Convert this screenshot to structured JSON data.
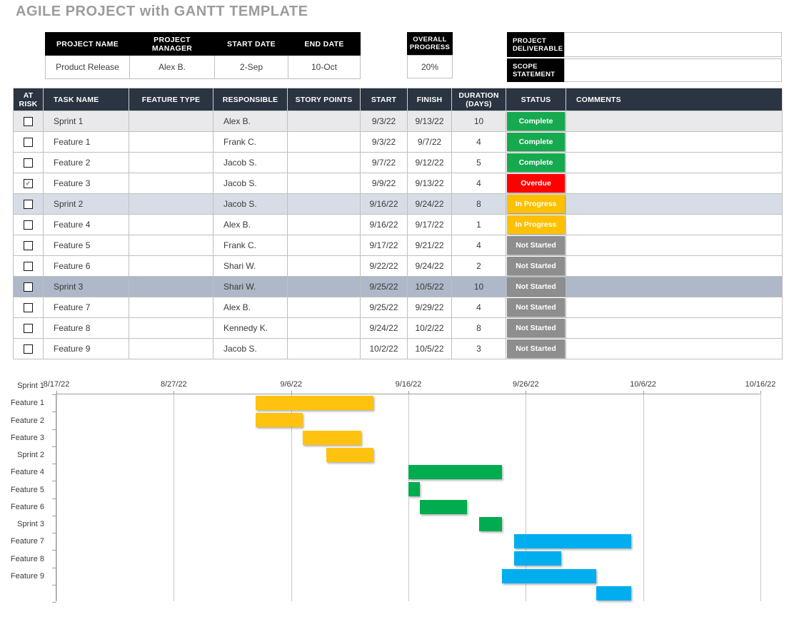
{
  "title": "AGILE PROJECT with GANTT TEMPLATE",
  "project_info": {
    "headers": [
      "PROJECT NAME",
      "PROJECT MANAGER",
      "START DATE",
      "END DATE"
    ],
    "values": [
      "Product Release",
      "Alex B.",
      "2-Sep",
      "10-Oct"
    ]
  },
  "overall_progress": {
    "label": "OVERALL PROGRESS",
    "value": "20%"
  },
  "deliverable": {
    "label": "PROJECT DELIVERABLE",
    "value": ""
  },
  "scope": {
    "label": "SCOPE STATEMENT",
    "value": ""
  },
  "colors": {
    "table_header": "#2B3441",
    "black_label": "#000000",
    "title_gray": "#9C9C9E"
  },
  "row_colors": {
    "sprint1": "#E9E9EB",
    "sprint2": "#D7DDE6",
    "sprint3": "#AEB8C8",
    "normal": "#FFFFFF"
  },
  "status_colors": {
    "Complete": "#16A94F",
    "Overdue": "#FE0000",
    "In Progress": "#FFC000",
    "Not Started": "#8E8E8E"
  },
  "checkmark_glyph": "✓",
  "task_table": {
    "headers": [
      "AT RISK",
      "TASK NAME",
      "FEATURE TYPE",
      "RESPONSIBLE",
      "STORY POINTS",
      "START",
      "FINISH",
      "DURATION (DAYS)",
      "STATUS",
      "COMMENTS"
    ],
    "rows": [
      {
        "at_risk": false,
        "task": "Sprint 1",
        "feature_type": "",
        "responsible": "Alex B.",
        "story_points": "",
        "start": "9/3/22",
        "finish": "9/13/22",
        "duration": "10",
        "status": "Complete",
        "comments": "",
        "row_type": "sprint1"
      },
      {
        "at_risk": false,
        "task": "Feature 1",
        "feature_type": "",
        "responsible": "Frank C.",
        "story_points": "",
        "start": "9/3/22",
        "finish": "9/7/22",
        "duration": "4",
        "status": "Complete",
        "comments": "",
        "row_type": "normal"
      },
      {
        "at_risk": false,
        "task": "Feature 2",
        "feature_type": "",
        "responsible": "Jacob S.",
        "story_points": "",
        "start": "9/7/22",
        "finish": "9/12/22",
        "duration": "5",
        "status": "Complete",
        "comments": "",
        "row_type": "normal"
      },
      {
        "at_risk": true,
        "task": "Feature 3",
        "feature_type": "",
        "responsible": "Jacob S.",
        "story_points": "",
        "start": "9/9/22",
        "finish": "9/13/22",
        "duration": "4",
        "status": "Overdue",
        "comments": "",
        "row_type": "normal"
      },
      {
        "at_risk": false,
        "task": "Sprint 2",
        "feature_type": "",
        "responsible": "Jacob S.",
        "story_points": "",
        "start": "9/16/22",
        "finish": "9/24/22",
        "duration": "8",
        "status": "In Progress",
        "comments": "",
        "row_type": "sprint2"
      },
      {
        "at_risk": false,
        "task": "Feature 4",
        "feature_type": "",
        "responsible": "Alex B.",
        "story_points": "",
        "start": "9/16/22",
        "finish": "9/17/22",
        "duration": "1",
        "status": "In Progress",
        "comments": "",
        "row_type": "normal"
      },
      {
        "at_risk": false,
        "task": "Feature 5",
        "feature_type": "",
        "responsible": "Frank C.",
        "story_points": "",
        "start": "9/17/22",
        "finish": "9/21/22",
        "duration": "4",
        "status": "Not Started",
        "comments": "",
        "row_type": "normal"
      },
      {
        "at_risk": false,
        "task": "Feature 6",
        "feature_type": "",
        "responsible": "Shari W.",
        "story_points": "",
        "start": "9/22/22",
        "finish": "9/24/22",
        "duration": "2",
        "status": "Not Started",
        "comments": "",
        "row_type": "normal"
      },
      {
        "at_risk": false,
        "task": "Sprint 3",
        "feature_type": "",
        "responsible": "Shari W.",
        "story_points": "",
        "start": "9/25/22",
        "finish": "10/5/22",
        "duration": "10",
        "status": "Not Started",
        "comments": "",
        "row_type": "sprint3"
      },
      {
        "at_risk": false,
        "task": "Feature 7",
        "feature_type": "",
        "responsible": "Alex B.",
        "story_points": "",
        "start": "9/25/22",
        "finish": "9/29/22",
        "duration": "4",
        "status": "Not Started",
        "comments": "",
        "row_type": "normal"
      },
      {
        "at_risk": false,
        "task": "Feature 8",
        "feature_type": "",
        "responsible": "Kennedy K.",
        "story_points": "",
        "start": "9/24/22",
        "finish": "10/2/22",
        "duration": "8",
        "status": "Not Started",
        "comments": "",
        "row_type": "normal"
      },
      {
        "at_risk": false,
        "task": "Feature 9",
        "feature_type": "",
        "responsible": "Jacob S.",
        "story_points": "",
        "start": "10/2/22",
        "finish": "10/5/22",
        "duration": "3",
        "status": "Not Started",
        "comments": "",
        "row_type": "normal"
      }
    ]
  },
  "chart_data": {
    "type": "bar",
    "subtype": "gantt",
    "axis_dates": [
      "8/17/22",
      "8/27/22",
      "9/6/22",
      "9/16/22",
      "9/26/22",
      "10/6/22",
      "10/16/22"
    ],
    "axis_range_days": 60,
    "tick_interval_days": 10,
    "grid": true,
    "legend": false,
    "tasks": [
      {
        "label": "Sprint 1",
        "start": "9/3/22",
        "end": "9/13/22",
        "color": "#FFC20E"
      },
      {
        "label": "Feature 1",
        "start": "9/3/22",
        "end": "9/7/22",
        "color": "#FFC20E"
      },
      {
        "label": "Feature 2",
        "start": "9/7/22",
        "end": "9/12/22",
        "color": "#FFC20E"
      },
      {
        "label": "Feature 3",
        "start": "9/9/22",
        "end": "9/13/22",
        "color": "#FFC20E"
      },
      {
        "label": "Sprint 2",
        "start": "9/16/22",
        "end": "9/24/22",
        "color": "#00AC4F"
      },
      {
        "label": "Feature 4",
        "start": "9/16/22",
        "end": "9/17/22",
        "color": "#00AC4F"
      },
      {
        "label": "Feature 5",
        "start": "9/17/22",
        "end": "9/21/22",
        "color": "#00AC4F"
      },
      {
        "label": "Feature 6",
        "start": "9/22/22",
        "end": "9/24/22",
        "color": "#00AC4F"
      },
      {
        "label": "Sprint 3",
        "start": "9/25/22",
        "end": "10/5/22",
        "color": "#00AEEF"
      },
      {
        "label": "Feature 7",
        "start": "9/25/22",
        "end": "9/29/22",
        "color": "#00AEEF"
      },
      {
        "label": "Feature 8",
        "start": "9/24/22",
        "end": "10/2/22",
        "color": "#00AEEF"
      },
      {
        "label": "Feature 9",
        "start": "10/2/22",
        "end": "10/5/22",
        "color": "#00AEEF"
      }
    ]
  }
}
